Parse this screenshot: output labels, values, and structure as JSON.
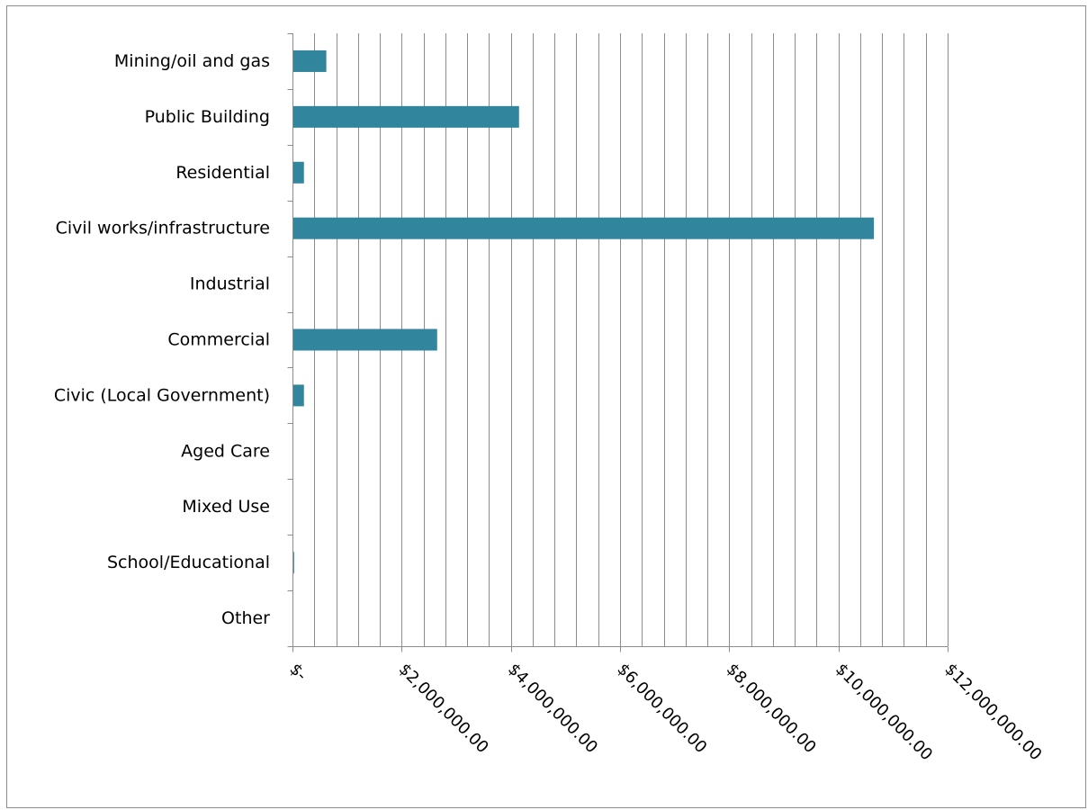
{
  "chart_data": {
    "type": "bar",
    "orientation": "horizontal",
    "categories": [
      "Mining/oil and gas",
      "Public Building",
      "Residential",
      "Civil works/infrastructure",
      "Industrial",
      "Commercial",
      "Civic (Local Government)",
      "Aged Care",
      "Mixed Use",
      "School/Educational",
      "Other"
    ],
    "values": [
      620000,
      4150000,
      210000,
      10650000,
      0,
      2650000,
      210000,
      0,
      0,
      30000,
      0
    ],
    "title": "",
    "xlabel": "",
    "ylabel": "",
    "xlim": [
      0,
      12000000
    ],
    "x_ticks": [
      0,
      2000000,
      4000000,
      6000000,
      8000000,
      10000000,
      12000000
    ],
    "x_tick_labels": [
      "$-",
      "$2,000,000.00",
      "$4,000,000.00",
      "$6,000,000.00",
      "$8,000,000.00",
      "$10,000,000.00",
      "$12,000,000.00"
    ],
    "minor_gridline_step": 400000,
    "grid": true,
    "legend": "none",
    "colors": {
      "bar": "#31859C",
      "gridline": "#8C8C8C",
      "axis": "#8C8C8C"
    }
  }
}
